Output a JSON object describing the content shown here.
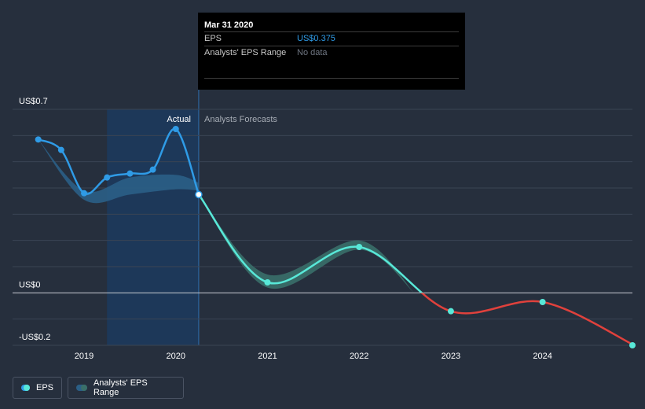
{
  "tooltip": {
    "date": "Mar 31 2020",
    "rows": [
      {
        "label": "EPS",
        "value": "US$0.375"
      },
      {
        "label": "Analysts' EPS Range",
        "value": "No data"
      }
    ]
  },
  "legend": [
    {
      "label": "EPS"
    },
    {
      "label": "Analysts' EPS Range"
    }
  ],
  "colors": {
    "background": "#262f3d",
    "eps_actual": "#2f9be6",
    "eps_forecast_positive": "#58e8d8",
    "eps_forecast_negative": "#e0413c",
    "range_actual": "#2b5f86",
    "range_forecast": "#3a6f69",
    "highlight_band": "#1c3a5e"
  },
  "chart_data": {
    "type": "line",
    "title": "",
    "xlabel": "",
    "ylabel": "",
    "divider_labels": {
      "actual": "Actual",
      "forecast": "Analysts Forecasts"
    },
    "ylim": [
      -0.2,
      0.7
    ],
    "y_ticks": [
      {
        "value": 0.7,
        "label": "US$0.7"
      },
      {
        "value": 0.0,
        "label": "US$0"
      },
      {
        "value": -0.2,
        "label": "-US$0.2"
      }
    ],
    "x_ticks": [
      "2019",
      "2020",
      "2021",
      "2022",
      "2023",
      "2024"
    ],
    "xlim": [
      2018.22,
      2024.98
    ],
    "highlight": {
      "from": 2019.25,
      "to": 2020.25
    },
    "series": [
      {
        "name": "EPS",
        "kind": "actual",
        "x": [
          2018.5,
          2018.75,
          2019.0,
          2019.25,
          2019.5,
          2019.75,
          2020.0,
          2020.25
        ],
        "y": [
          0.585,
          0.545,
          0.38,
          0.44,
          0.455,
          0.47,
          0.625,
          0.375
        ]
      },
      {
        "name": "EPS",
        "kind": "forecast",
        "x": [
          2020.25,
          2021.0,
          2022.0,
          2023.0,
          2024.0,
          2025.0
        ],
        "y": [
          0.375,
          0.04,
          0.175,
          -0.07,
          -0.035,
          -0.2
        ]
      }
    ],
    "ranges": [
      {
        "name": "Analysts' EPS Range",
        "kind": "actual",
        "x": [
          2018.5,
          2019.0,
          2019.5,
          2020.0,
          2020.25
        ],
        "low": [
          0.585,
          0.355,
          0.375,
          0.395,
          0.39
        ],
        "high": [
          0.585,
          0.39,
          0.44,
          0.45,
          0.42
        ]
      },
      {
        "name": "Analysts' EPS Range",
        "kind": "forecast",
        "x": [
          2020.25,
          2021.0,
          2022.0,
          2022.6
        ],
        "low": [
          0.375,
          0.02,
          0.165,
          0.0
        ],
        "high": [
          0.375,
          0.07,
          0.2,
          0.0
        ]
      }
    ]
  }
}
